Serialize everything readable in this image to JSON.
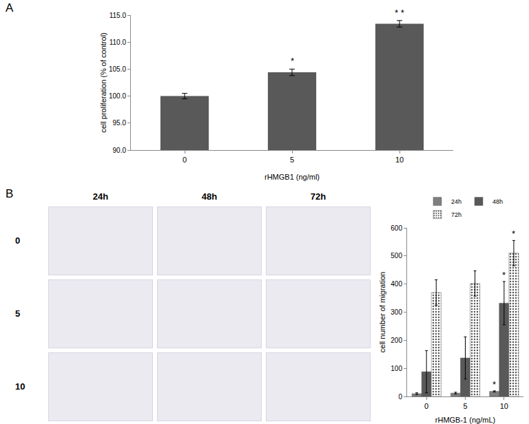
{
  "panel_labels": [
    "A",
    "B"
  ],
  "image_grid": {
    "columns": [
      "24h",
      "48h",
      "72h"
    ],
    "rows": [
      "0",
      "5",
      "10"
    ]
  },
  "chart_data": [
    {
      "type": "bar",
      "x_label": "rHMGB1 (ng/ml)",
      "y_label": "cell proliferation (% of control)",
      "categories": [
        "0",
        "5",
        "10"
      ],
      "values": [
        100.0,
        104.4,
        113.4
      ],
      "error": [
        0.5,
        0.6,
        0.6
      ],
      "significance": [
        null,
        "*",
        "* *"
      ],
      "color": "#595959",
      "ylim": [
        90,
        115
      ],
      "yticks": [
        {
          "value": 90,
          "label": "90.0"
        },
        {
          "value": 95,
          "label": "95.0"
        },
        {
          "value": 100,
          "label": "100.0"
        },
        {
          "value": 105,
          "label": "105.0"
        },
        {
          "value": 110,
          "label": "110.0"
        },
        {
          "value": 115,
          "label": "115.0"
        }
      ],
      "grid": false
    },
    {
      "type": "bar",
      "x_label": "rHMGB-1 (ng/mL)",
      "y_label": "cell number of migration",
      "categories": [
        "0",
        "5",
        "10"
      ],
      "series": [
        {
          "name": "24h",
          "color": "#7f7f7f",
          "values": [
            10,
            12,
            18
          ],
          "error": [
            3,
            3,
            2
          ],
          "significance": [
            null,
            null,
            "*"
          ]
        },
        {
          "name": "48h",
          "color": "#595959",
          "values": [
            88,
            137,
            332
          ],
          "error": [
            75,
            75,
            77
          ],
          "significance": [
            null,
            null,
            "*"
          ]
        },
        {
          "name": "72h",
          "color": "#bfbfbf",
          "values": [
            370,
            402,
            510
          ],
          "error": [
            45,
            45,
            45
          ],
          "significance": [
            null,
            null,
            "*"
          ]
        }
      ],
      "ylim": [
        0,
        600
      ],
      "yticks": [
        0,
        100,
        200,
        300,
        400,
        500,
        600
      ],
      "legend": "top",
      "grid": false
    }
  ]
}
